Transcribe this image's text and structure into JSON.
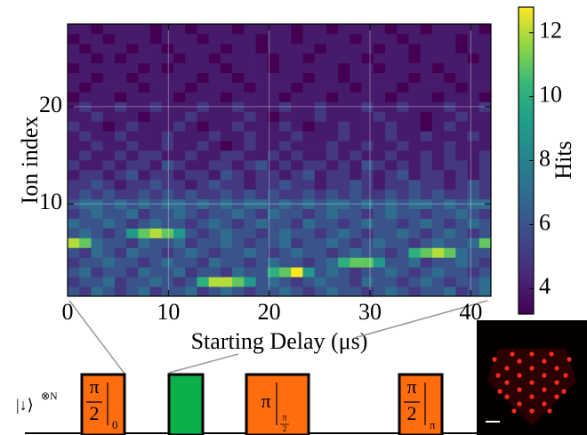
{
  "chart_data": {
    "type": "heatmap",
    "xlabel": "Starting Delay (μs)",
    "ylabel": "Ion index",
    "colorbar_label": "Hits",
    "colormap": "viridis",
    "grid": true,
    "xlim": [
      0,
      42
    ],
    "ylim": [
      0.5,
      28.5
    ],
    "xticks": [
      0,
      10,
      20,
      30,
      40
    ],
    "yticks": [
      10,
      20
    ],
    "clim": [
      3.2,
      12.8
    ],
    "cticks": [
      4,
      6,
      8,
      10,
      12
    ],
    "z": [
      [
        6,
        5,
        7,
        6,
        5,
        6,
        7,
        5,
        6,
        6,
        7,
        5,
        6,
        7,
        6,
        5,
        6,
        6,
        7,
        6,
        5,
        6,
        7,
        6,
        6,
        5,
        6,
        7,
        6,
        5,
        6,
        6,
        7,
        5,
        6,
        7
      ],
      [
        5,
        6,
        6,
        7,
        5,
        6,
        6,
        7,
        6,
        5,
        6,
        10,
        12,
        12,
        11,
        9,
        6,
        7,
        6,
        5,
        6,
        7,
        6,
        6,
        5,
        7,
        6,
        6,
        5,
        6,
        7,
        6,
        5,
        6,
        6,
        7
      ],
      [
        6,
        7,
        5,
        6,
        6,
        5,
        7,
        6,
        6,
        7,
        5,
        6,
        6,
        5,
        7,
        6,
        6,
        10,
        11,
        13,
        9,
        6,
        7,
        6,
        5,
        6,
        6,
        7,
        6,
        5,
        6,
        7,
        6,
        6,
        5,
        6
      ],
      [
        5,
        6,
        6,
        7,
        6,
        6,
        5,
        6,
        7,
        6,
        6,
        5,
        7,
        6,
        6,
        5,
        6,
        7,
        6,
        6,
        5,
        6,
        7,
        10,
        11,
        11,
        9,
        6,
        6,
        7,
        5,
        6,
        6,
        7,
        6,
        5
      ],
      [
        6,
        5,
        7,
        6,
        5,
        7,
        6,
        6,
        5,
        6,
        7,
        6,
        5,
        6,
        6,
        7,
        6,
        5,
        6,
        7,
        6,
        6,
        5,
        6,
        7,
        6,
        6,
        5,
        6,
        10,
        11,
        12,
        11,
        7,
        6,
        6
      ],
      [
        12,
        11,
        7,
        6,
        6,
        5,
        7,
        6,
        6,
        7,
        5,
        6,
        6,
        7,
        6,
        5,
        6,
        6,
        7,
        5,
        6,
        6,
        7,
        6,
        5,
        6,
        7,
        6,
        6,
        5,
        6,
        7,
        6,
        6,
        7,
        11
      ],
      [
        6,
        7,
        6,
        5,
        6,
        9,
        11,
        12,
        11,
        9,
        6,
        5,
        6,
        7,
        6,
        6,
        5,
        6,
        7,
        6,
        6,
        5,
        6,
        7,
        6,
        5,
        6,
        6,
        7,
        6,
        5,
        6,
        7,
        6,
        5,
        6
      ],
      [
        7,
        6,
        6,
        7,
        6,
        5,
        6,
        7,
        6,
        6,
        5,
        6,
        7,
        6,
        5,
        6,
        7,
        6,
        6,
        5,
        7,
        6,
        6,
        5,
        6,
        7,
        6,
        6,
        5,
        6,
        7,
        6,
        5,
        6,
        7,
        6
      ],
      [
        5,
        6,
        7,
        6,
        6,
        7,
        5,
        6,
        6,
        7,
        6,
        5,
        6,
        6,
        7,
        6,
        5,
        7,
        6,
        6,
        5,
        6,
        7,
        6,
        6,
        5,
        6,
        7,
        6,
        6,
        5,
        6,
        6,
        7,
        6,
        5
      ],
      [
        6,
        7,
        7,
        6,
        7,
        6,
        7,
        6,
        7,
        7,
        6,
        7,
        6,
        7,
        6,
        7,
        7,
        6,
        7,
        6,
        7,
        6,
        7,
        7,
        6,
        7,
        6,
        7,
        6,
        7,
        7,
        6,
        7,
        6,
        7,
        7
      ],
      [
        5,
        6,
        5,
        6,
        5,
        5,
        6,
        5,
        6,
        5,
        6,
        5,
        5,
        6,
        5,
        6,
        5,
        6,
        5,
        5,
        6,
        5,
        6,
        5,
        6,
        5,
        5,
        6,
        5,
        6,
        5,
        6,
        5,
        5,
        6,
        5
      ],
      [
        5,
        5,
        6,
        5,
        4,
        5,
        5,
        6,
        5,
        5,
        4,
        5,
        6,
        5,
        5,
        4,
        5,
        5,
        6,
        5,
        5,
        4,
        5,
        5,
        6,
        5,
        4,
        5,
        5,
        6,
        5,
        5,
        4,
        5,
        6,
        5
      ],
      [
        4,
        5,
        5,
        4,
        5,
        6,
        4,
        5,
        5,
        4,
        5,
        5,
        4,
        6,
        5,
        4,
        5,
        5,
        4,
        5,
        6,
        4,
        5,
        5,
        4,
        5,
        4,
        5,
        6,
        4,
        5,
        5,
        4,
        5,
        4,
        5
      ],
      [
        5,
        4,
        4,
        5,
        4,
        5,
        5,
        4,
        6,
        5,
        4,
        4,
        5,
        5,
        4,
        5,
        6,
        4,
        5,
        4,
        5,
        5,
        4,
        5,
        4,
        6,
        5,
        4,
        5,
        4,
        5,
        4,
        5,
        5,
        4,
        5
      ],
      [
        4,
        5,
        4,
        4,
        5,
        4,
        5,
        5,
        4,
        4,
        5,
        4,
        4,
        5,
        5,
        4,
        4,
        5,
        4,
        5,
        4,
        4,
        5,
        4,
        5,
        4,
        4,
        5,
        4,
        4,
        5,
        4,
        5,
        4,
        4,
        5
      ],
      [
        4,
        4,
        5,
        4,
        4,
        5,
        4,
        4,
        5,
        4,
        4,
        5,
        4,
        3,
        4,
        5,
        4,
        4,
        5,
        4,
        4,
        4,
        5,
        4,
        4,
        5,
        4,
        4,
        5,
        4,
        4,
        4,
        5,
        4,
        4,
        4
      ],
      [
        4,
        5,
        4,
        4,
        5,
        4,
        4,
        4,
        5,
        4,
        4,
        4,
        5,
        4,
        4,
        5,
        4,
        4,
        4,
        5,
        4,
        4,
        4,
        5,
        4,
        4,
        4,
        5,
        4,
        4,
        5,
        4,
        4,
        4,
        5,
        4
      ],
      [
        5,
        4,
        4,
        3,
        4,
        5,
        4,
        4,
        4,
        5,
        4,
        3,
        4,
        4,
        5,
        4,
        4,
        4,
        5,
        4,
        3,
        4,
        4,
        5,
        4,
        4,
        4,
        5,
        4,
        4,
        3,
        4,
        5,
        4,
        4,
        4
      ],
      [
        4,
        4,
        5,
        4,
        4,
        4,
        3,
        4,
        4,
        4,
        5,
        4,
        4,
        4,
        4,
        5,
        4,
        3,
        4,
        4,
        4,
        5,
        4,
        4,
        4,
        4,
        5,
        4,
        4,
        4,
        3,
        4,
        4,
        5,
        4,
        4
      ],
      [
        4,
        5,
        4,
        4,
        5,
        4,
        4,
        5,
        4,
        4,
        4,
        5,
        4,
        4,
        5,
        4,
        4,
        4,
        5,
        4,
        4,
        5,
        4,
        4,
        4,
        5,
        4,
        4,
        5,
        4,
        4,
        4,
        5,
        4,
        4,
        5
      ],
      [
        3,
        4,
        4,
        4,
        3,
        4,
        4,
        4,
        4,
        3,
        4,
        4,
        4,
        3,
        4,
        4,
        4,
        4,
        3,
        4,
        4,
        4,
        3,
        4,
        4,
        4,
        4,
        3,
        4,
        4,
        4,
        3,
        4,
        4,
        4,
        3
      ],
      [
        4,
        3,
        4,
        4,
        4,
        4,
        3,
        4,
        4,
        4,
        3,
        4,
        4,
        4,
        4,
        3,
        4,
        4,
        4,
        3,
        4,
        4,
        4,
        4,
        3,
        4,
        4,
        4,
        3,
        4,
        4,
        4,
        4,
        3,
        4,
        4
      ],
      [
        4,
        4,
        3,
        4,
        4,
        3,
        4,
        4,
        4,
        4,
        4,
        3,
        4,
        4,
        3,
        4,
        4,
        4,
        4,
        4,
        3,
        4,
        4,
        3,
        4,
        4,
        4,
        4,
        4,
        3,
        4,
        4,
        3,
        4,
        4,
        4
      ],
      [
        3,
        4,
        4,
        4,
        4,
        4,
        3,
        4,
        3,
        4,
        4,
        4,
        4,
        3,
        4,
        4,
        4,
        3,
        4,
        4,
        4,
        4,
        4,
        3,
        4,
        4,
        3,
        4,
        4,
        4,
        4,
        3,
        4,
        4,
        4,
        4
      ],
      [
        4,
        4,
        3,
        4,
        3,
        4,
        4,
        4,
        4,
        3,
        4,
        4,
        3,
        4,
        4,
        4,
        4,
        3,
        4,
        4,
        3,
        4,
        4,
        4,
        4,
        3,
        4,
        4,
        4,
        3,
        4,
        4,
        4,
        4,
        3,
        4
      ],
      [
        4,
        3,
        4,
        4,
        4,
        3,
        4,
        4,
        3,
        4,
        4,
        4,
        4,
        3,
        4,
        4,
        3,
        4,
        4,
        4,
        4,
        3,
        4,
        4,
        4,
        4,
        3,
        4,
        4,
        3,
        4,
        4,
        4,
        3,
        4,
        4
      ],
      [
        3,
        4,
        4,
        3,
        4,
        4,
        4,
        3,
        4,
        4,
        4,
        3,
        4,
        4,
        4,
        4,
        3,
        4,
        4,
        3,
        4,
        4,
        4,
        4,
        3,
        4,
        4,
        4,
        3,
        4,
        4,
        4,
        4,
        3,
        4,
        4
      ],
      [
        4,
        4,
        3,
        4,
        4,
        4,
        4,
        3,
        4,
        4,
        3,
        4,
        4,
        4,
        3,
        4,
        4,
        4,
        4,
        3,
        4,
        4,
        3,
        4,
        4,
        4,
        4,
        3,
        4,
        4,
        3,
        4,
        4,
        4,
        4,
        3
      ]
    ]
  },
  "diagram": {
    "state": "|↓⟩",
    "state_power": "⊗N",
    "pulses": [
      {
        "num": "π",
        "den": "2",
        "phase": "0"
      },
      {
        "num": "π",
        "phase_num": "π",
        "phase_den": "2"
      },
      {
        "num": "π",
        "den": "2",
        "phase": "π"
      }
    ]
  }
}
